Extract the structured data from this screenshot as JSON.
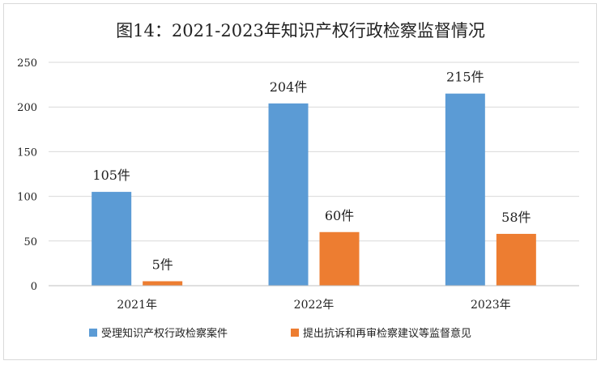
{
  "chart_data": {
    "type": "bar",
    "title": "图14：2021-2023年知识产权行政检察监督情况",
    "categories": [
      "2021年",
      "2022年",
      "2023年"
    ],
    "series": [
      {
        "name": "受理知识产权行政检察案件",
        "values": [
          105,
          204,
          215
        ],
        "labels": [
          "105件",
          "204件",
          "215件"
        ],
        "color": "#5b9bd5"
      },
      {
        "name": "提出抗诉和再审检察建议等监督意见",
        "values": [
          5,
          60,
          58
        ],
        "labels": [
          "5件",
          "60件",
          "58件"
        ],
        "color": "#ed7d31"
      }
    ],
    "yticks": [
      "0",
      "50",
      "100",
      "150",
      "200",
      "250"
    ],
    "ylim": [
      0,
      250
    ],
    "grid": true,
    "legend": "bottom"
  }
}
